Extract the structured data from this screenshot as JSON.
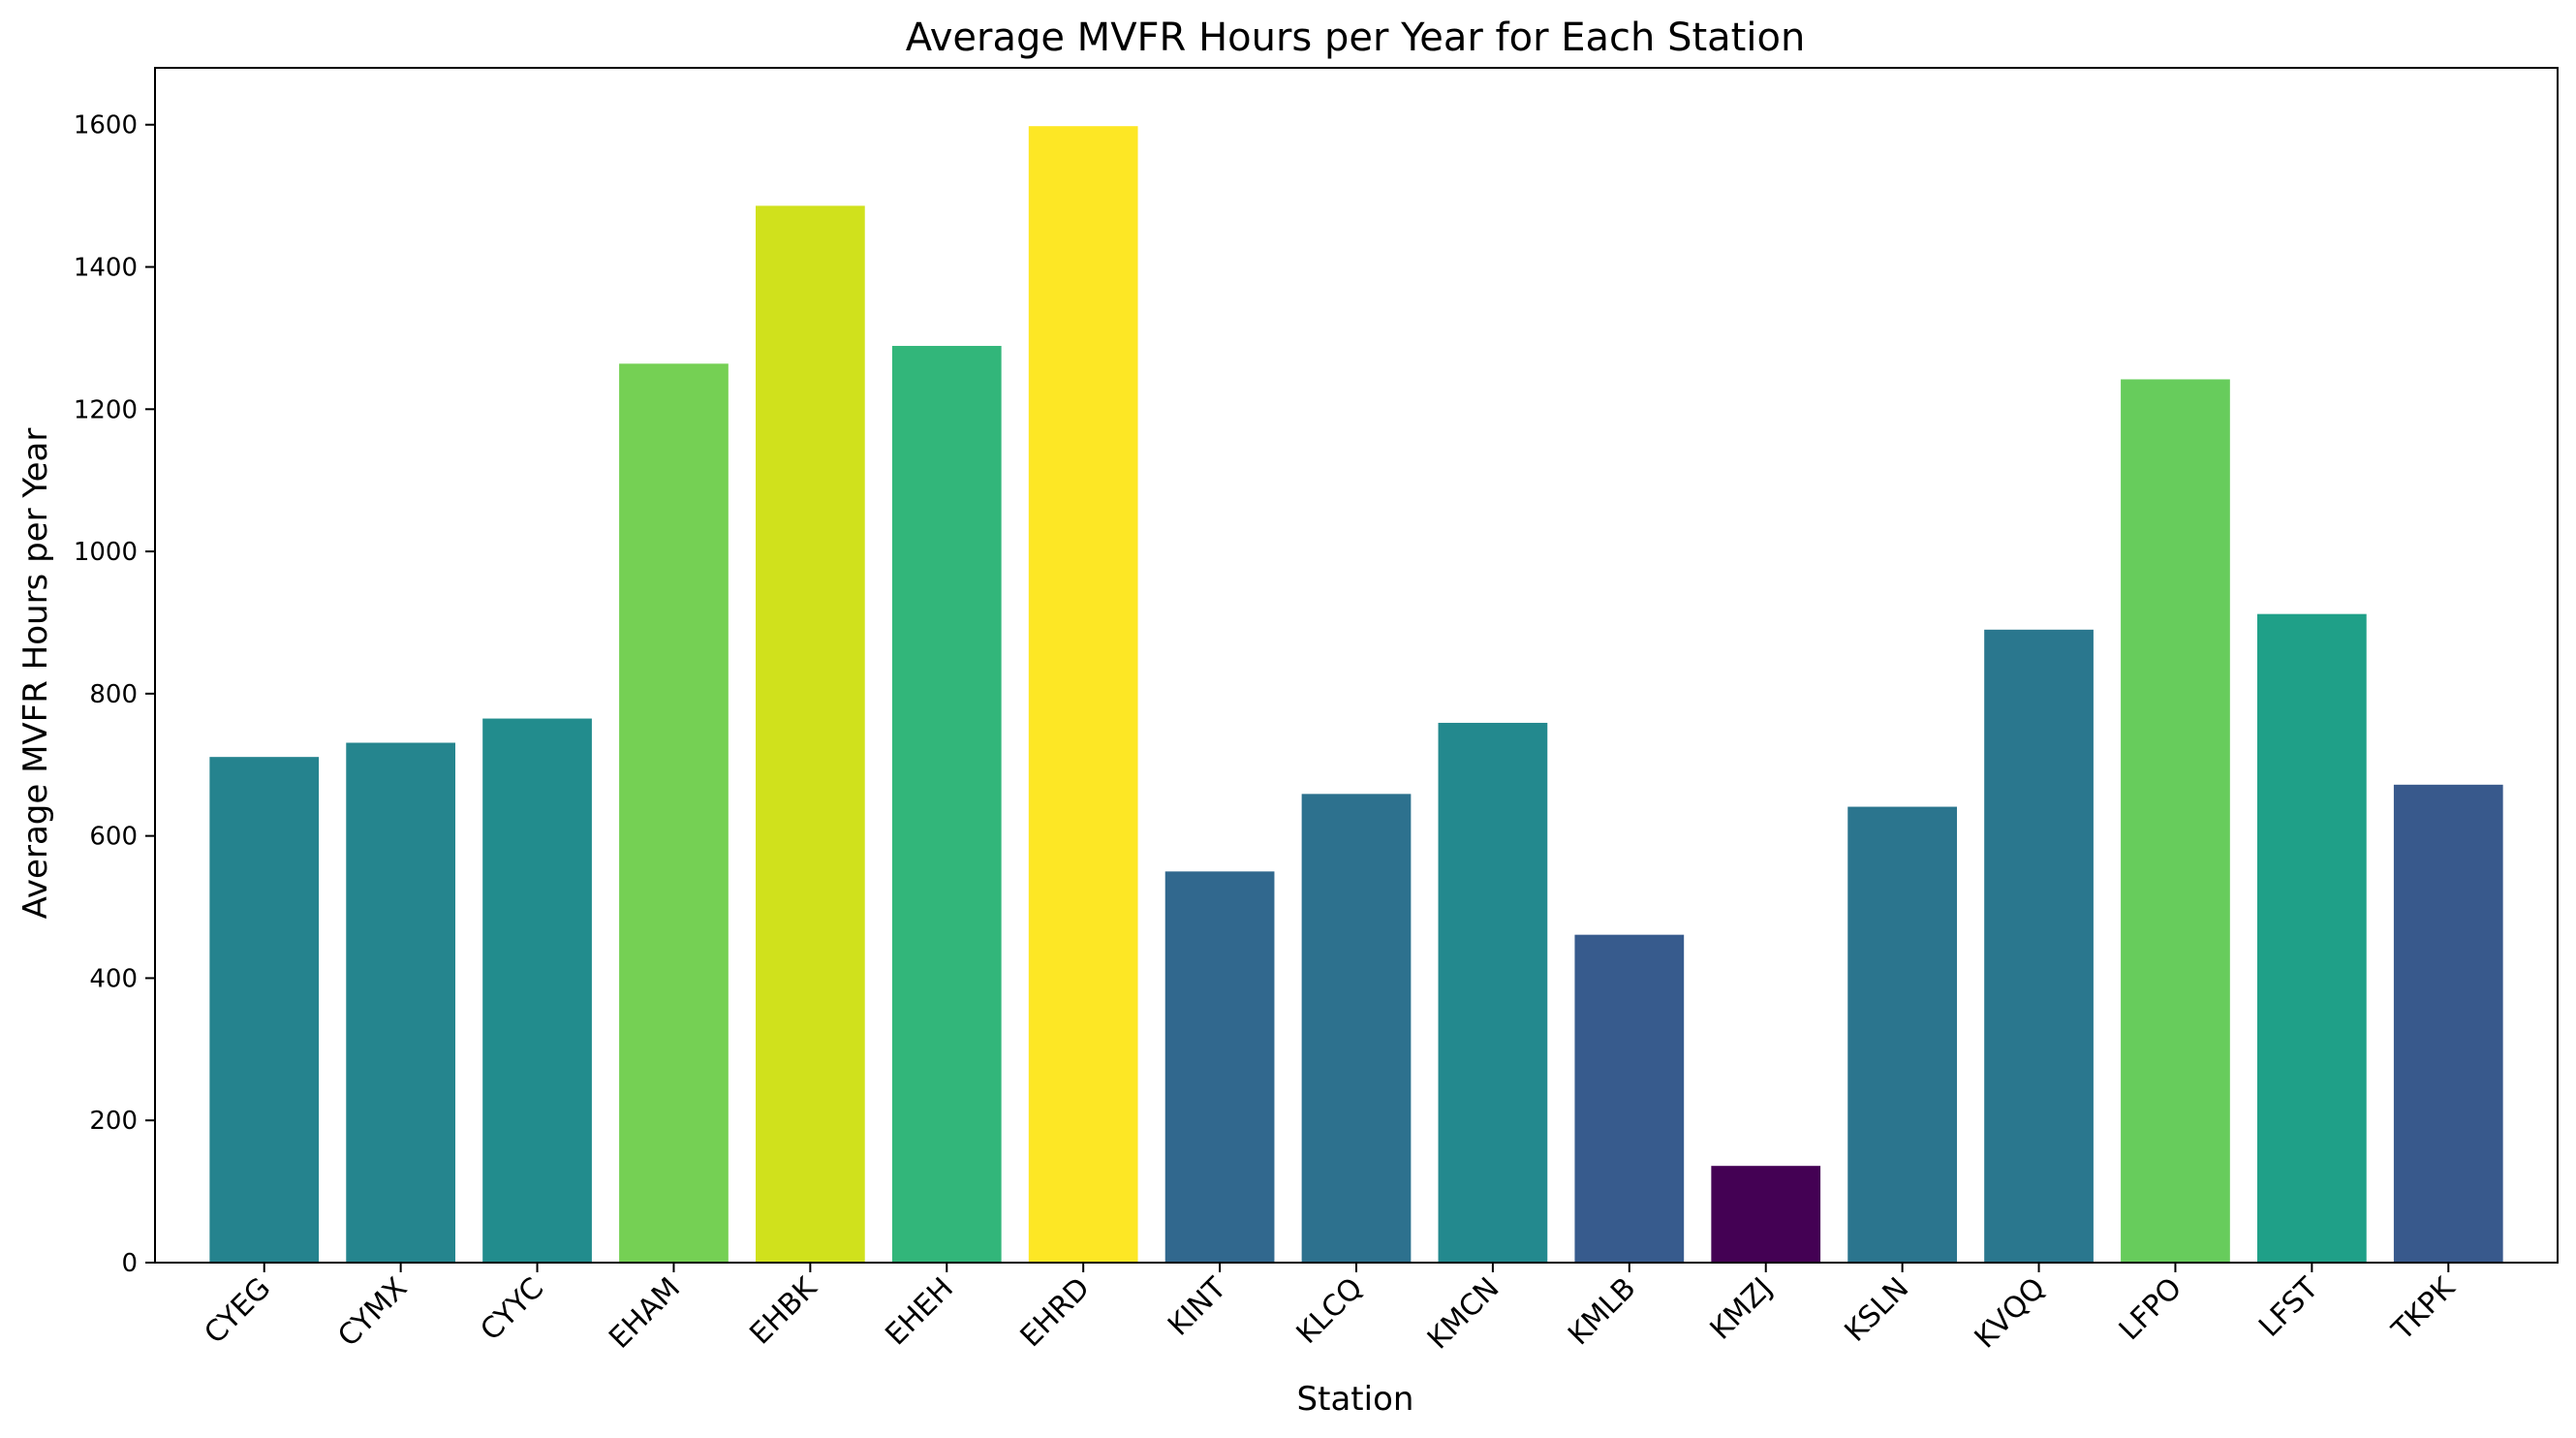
{
  "chart_data": {
    "type": "bar",
    "title": "Average MVFR Hours per Year for Each Station",
    "xlabel": "Station",
    "ylabel": "Average MVFR Hours per Year",
    "categories": [
      "CYEG",
      "CYMX",
      "CYYC",
      "EHAM",
      "EHBK",
      "EHEH",
      "EHRD",
      "KINT",
      "KLCQ",
      "KMCN",
      "KMLB",
      "KMZJ",
      "KSLN",
      "KVQQ",
      "LFPO",
      "LFST",
      "TKPK"
    ],
    "values": [
      711,
      731,
      765,
      1264,
      1486,
      1289,
      1598,
      550,
      659,
      759,
      461,
      136,
      641,
      890,
      1242,
      912,
      672
    ],
    "colors": [
      "#25838e",
      "#25858e",
      "#228c8d",
      "#75d054",
      "#d0e11c",
      "#32b67a",
      "#fde725",
      "#31688e",
      "#2d718e",
      "#23898e",
      "#375b8d",
      "#440154",
      "#2b758e",
      "#2a778e",
      "#67cc5c",
      "#1fa088",
      "#38598c"
    ],
    "ylim": [
      0,
      1680
    ],
    "yticks": [
      0,
      200,
      400,
      600,
      800,
      1000,
      1200,
      1400,
      1600
    ],
    "grid": false,
    "legend": "none"
  }
}
